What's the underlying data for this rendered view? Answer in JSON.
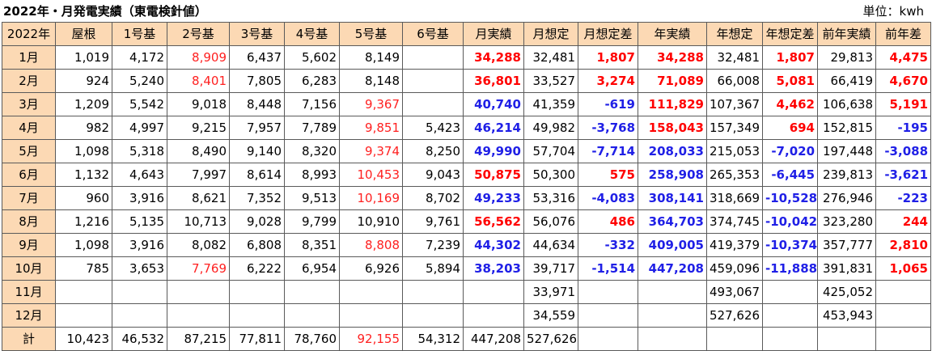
{
  "title": "2022年・月発電実績（東電検針値）",
  "unit": "単位：kwh",
  "colors": {
    "header_bg": "#fcd9b4",
    "red": "#ff2020",
    "blue": "#1f1fe6"
  },
  "headers": [
    "2022年",
    "屋根",
    "1号基",
    "2号基",
    "3号基",
    "4号基",
    "5号基",
    "6号基",
    "月実績",
    "月想定",
    "月想定差",
    "年実績",
    "年想定",
    "年想定差",
    "前年実績",
    "前年差"
  ],
  "rows": [
    {
      "label": "1月",
      "cells": [
        {
          "v": "1,019"
        },
        {
          "v": "4,172"
        },
        {
          "v": "8,909",
          "s": "red"
        },
        {
          "v": "6,437"
        },
        {
          "v": "5,602"
        },
        {
          "v": "8,149"
        },
        {
          "v": ""
        },
        {
          "v": "34,288",
          "s": "redb"
        },
        {
          "v": "32,481"
        },
        {
          "v": "1,807",
          "s": "redb"
        },
        {
          "v": "34,288",
          "s": "redb"
        },
        {
          "v": "32,481"
        },
        {
          "v": "1,807",
          "s": "redb"
        },
        {
          "v": "29,813"
        },
        {
          "v": "4,475",
          "s": "redb"
        }
      ]
    },
    {
      "label": "2月",
      "cells": [
        {
          "v": "924"
        },
        {
          "v": "5,240"
        },
        {
          "v": "8,401",
          "s": "red"
        },
        {
          "v": "7,805"
        },
        {
          "v": "6,283"
        },
        {
          "v": "8,148"
        },
        {
          "v": ""
        },
        {
          "v": "36,801",
          "s": "redb"
        },
        {
          "v": "33,527"
        },
        {
          "v": "3,274",
          "s": "redb"
        },
        {
          "v": "71,089",
          "s": "redb"
        },
        {
          "v": "66,008"
        },
        {
          "v": "5,081",
          "s": "redb"
        },
        {
          "v": "66,419"
        },
        {
          "v": "4,670",
          "s": "redb"
        }
      ]
    },
    {
      "label": "3月",
      "cells": [
        {
          "v": "1,209"
        },
        {
          "v": "5,542"
        },
        {
          "v": "9,018"
        },
        {
          "v": "8,448"
        },
        {
          "v": "7,156"
        },
        {
          "v": "9,367",
          "s": "red"
        },
        {
          "v": ""
        },
        {
          "v": "40,740",
          "s": "blueb"
        },
        {
          "v": "41,359"
        },
        {
          "v": "-619",
          "s": "blueb"
        },
        {
          "v": "111,829",
          "s": "redb"
        },
        {
          "v": "107,367"
        },
        {
          "v": "4,462",
          "s": "redb"
        },
        {
          "v": "106,638"
        },
        {
          "v": "5,191",
          "s": "redb"
        }
      ]
    },
    {
      "label": "4月",
      "cells": [
        {
          "v": "982"
        },
        {
          "v": "4,997"
        },
        {
          "v": "9,215"
        },
        {
          "v": "7,957"
        },
        {
          "v": "7,789"
        },
        {
          "v": "9,851",
          "s": "red"
        },
        {
          "v": "5,423"
        },
        {
          "v": "46,214",
          "s": "blueb"
        },
        {
          "v": "49,982"
        },
        {
          "v": "-3,768",
          "s": "blueb"
        },
        {
          "v": "158,043",
          "s": "redb"
        },
        {
          "v": "157,349"
        },
        {
          "v": "694",
          "s": "redb"
        },
        {
          "v": "152,815"
        },
        {
          "v": "-195",
          "s": "blueb"
        }
      ]
    },
    {
      "label": "5月",
      "cells": [
        {
          "v": "1,098"
        },
        {
          "v": "5,318"
        },
        {
          "v": "8,490"
        },
        {
          "v": "9,140"
        },
        {
          "v": "8,320"
        },
        {
          "v": "9,374",
          "s": "red"
        },
        {
          "v": "8,250"
        },
        {
          "v": "49,990",
          "s": "blueb"
        },
        {
          "v": "57,704"
        },
        {
          "v": "-7,714",
          "s": "blueb"
        },
        {
          "v": "208,033",
          "s": "blueb"
        },
        {
          "v": "215,053"
        },
        {
          "v": "-7,020",
          "s": "blueb"
        },
        {
          "v": "197,448"
        },
        {
          "v": "-3,088",
          "s": "blueb"
        }
      ]
    },
    {
      "label": "6月",
      "cells": [
        {
          "v": "1,132"
        },
        {
          "v": "4,643"
        },
        {
          "v": "7,997"
        },
        {
          "v": "8,614"
        },
        {
          "v": "8,993"
        },
        {
          "v": "10,453",
          "s": "red"
        },
        {
          "v": "9,043"
        },
        {
          "v": "50,875",
          "s": "redb"
        },
        {
          "v": "50,300"
        },
        {
          "v": "575",
          "s": "redb"
        },
        {
          "v": "258,908",
          "s": "blueb"
        },
        {
          "v": "265,353"
        },
        {
          "v": "-6,445",
          "s": "blueb"
        },
        {
          "v": "239,813"
        },
        {
          "v": "-3,621",
          "s": "blueb"
        }
      ]
    },
    {
      "label": "7月",
      "cells": [
        {
          "v": "960"
        },
        {
          "v": "3,916"
        },
        {
          "v": "8,621"
        },
        {
          "v": "7,352"
        },
        {
          "v": "9,513"
        },
        {
          "v": "10,169",
          "s": "red"
        },
        {
          "v": "8,702"
        },
        {
          "v": "49,233",
          "s": "blueb"
        },
        {
          "v": "53,316"
        },
        {
          "v": "-4,083",
          "s": "blueb"
        },
        {
          "v": "308,141",
          "s": "blueb"
        },
        {
          "v": "318,669"
        },
        {
          "v": "-10,528",
          "s": "blueb"
        },
        {
          "v": "276,946"
        },
        {
          "v": "-223",
          "s": "blueb"
        }
      ]
    },
    {
      "label": "8月",
      "cells": [
        {
          "v": "1,216"
        },
        {
          "v": "5,135"
        },
        {
          "v": "10,713"
        },
        {
          "v": "9,028"
        },
        {
          "v": "9,799"
        },
        {
          "v": "10,910"
        },
        {
          "v": "9,761"
        },
        {
          "v": "56,562",
          "s": "redb"
        },
        {
          "v": "56,076"
        },
        {
          "v": "486",
          "s": "redb"
        },
        {
          "v": "364,703",
          "s": "blueb"
        },
        {
          "v": "374,745"
        },
        {
          "v": "-10,042",
          "s": "blueb"
        },
        {
          "v": "323,280"
        },
        {
          "v": "244",
          "s": "redb"
        }
      ]
    },
    {
      "label": "9月",
      "cells": [
        {
          "v": "1,098"
        },
        {
          "v": "3,916"
        },
        {
          "v": "8,082"
        },
        {
          "v": "6,808"
        },
        {
          "v": "8,351"
        },
        {
          "v": "8,808",
          "s": "red"
        },
        {
          "v": "7,239"
        },
        {
          "v": "44,302",
          "s": "blueb"
        },
        {
          "v": "44,634"
        },
        {
          "v": "-332",
          "s": "blueb"
        },
        {
          "v": "409,005",
          "s": "blueb"
        },
        {
          "v": "419,379"
        },
        {
          "v": "-10,374",
          "s": "blueb"
        },
        {
          "v": "357,777"
        },
        {
          "v": "2,810",
          "s": "redb"
        }
      ]
    },
    {
      "label": "10月",
      "cells": [
        {
          "v": "785"
        },
        {
          "v": "3,653"
        },
        {
          "v": "7,769",
          "s": "red"
        },
        {
          "v": "6,222"
        },
        {
          "v": "6,954"
        },
        {
          "v": "6,926"
        },
        {
          "v": "5,894"
        },
        {
          "v": "38,203",
          "s": "blueb"
        },
        {
          "v": "39,717"
        },
        {
          "v": "-1,514",
          "s": "blueb"
        },
        {
          "v": "447,208",
          "s": "blueb"
        },
        {
          "v": "459,096"
        },
        {
          "v": "-11,888",
          "s": "blueb"
        },
        {
          "v": "391,831"
        },
        {
          "v": "1,065",
          "s": "redb"
        }
      ]
    },
    {
      "label": "11月",
      "cells": [
        {
          "v": ""
        },
        {
          "v": ""
        },
        {
          "v": ""
        },
        {
          "v": ""
        },
        {
          "v": ""
        },
        {
          "v": ""
        },
        {
          "v": ""
        },
        {
          "v": ""
        },
        {
          "v": "33,971"
        },
        {
          "v": ""
        },
        {
          "v": ""
        },
        {
          "v": "493,067"
        },
        {
          "v": ""
        },
        {
          "v": "425,052"
        },
        {
          "v": ""
        }
      ]
    },
    {
      "label": "12月",
      "cells": [
        {
          "v": ""
        },
        {
          "v": ""
        },
        {
          "v": ""
        },
        {
          "v": ""
        },
        {
          "v": ""
        },
        {
          "v": ""
        },
        {
          "v": ""
        },
        {
          "v": ""
        },
        {
          "v": "34,559"
        },
        {
          "v": ""
        },
        {
          "v": ""
        },
        {
          "v": "527,626"
        },
        {
          "v": ""
        },
        {
          "v": "453,943"
        },
        {
          "v": ""
        }
      ]
    },
    {
      "label": "計",
      "cells": [
        {
          "v": "10,423"
        },
        {
          "v": "46,532"
        },
        {
          "v": "87,215"
        },
        {
          "v": "77,811"
        },
        {
          "v": "78,760"
        },
        {
          "v": "92,155",
          "s": "red"
        },
        {
          "v": "54,312"
        },
        {
          "v": "447,208"
        },
        {
          "v": "527,626"
        },
        {
          "v": ""
        },
        {
          "v": ""
        },
        {
          "v": ""
        },
        {
          "v": ""
        },
        {
          "v": ""
        },
        {
          "v": ""
        }
      ]
    }
  ]
}
